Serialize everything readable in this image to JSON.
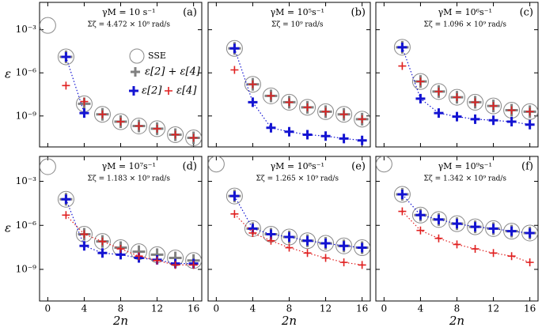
{
  "chart_data": [
    {
      "type": "scatter",
      "panel_label": "(a)",
      "annotations": [
        "γM = 10 s⁻¹",
        "Σζ = 4.472 × 10⁸ rad/s"
      ],
      "ylabel": "ε",
      "log_y": true,
      "legend": "upper right",
      "x": [
        0,
        2,
        4,
        6,
        8,
        10,
        12,
        14,
        16
      ],
      "xlim": [
        -0.9,
        16.9
      ],
      "ylim": [
        0.08,
        7e-12
      ],
      "xticks": [
        0,
        4,
        8,
        12,
        16
      ],
      "yticks": [
        {
          "value": 0.001,
          "label": "10⁻³"
        },
        {
          "value": 1e-06,
          "label": "10⁻⁶"
        },
        {
          "value": 1e-09,
          "label": "10⁻⁹"
        }
      ],
      "series": [
        {
          "name": "SSE",
          "marker": "circle",
          "color": "#888888",
          "values": [
            0.002,
            1.3e-05,
            7e-09,
            1.3e-09,
            4e-10,
            2e-10,
            1.3e-10,
            5e-11,
            3e-11
          ]
        },
        {
          "name": "ε[2] + ε[4]",
          "marker": "plus",
          "color": "#808080",
          "values": [
            null,
            1.3e-05,
            7e-09,
            1.3e-09,
            4e-10,
            2e-10,
            1.3e-10,
            5e-11,
            3e-11
          ]
        },
        {
          "name": "ε[2]",
          "marker": "plus",
          "color": "#1414d2",
          "dotted": true,
          "values": [
            null,
            1.3e-05,
            1.6e-09,
            null,
            null,
            null,
            null,
            null,
            null
          ]
        },
        {
          "name": "ε[4]",
          "marker": "plus",
          "color": "#e02020",
          "values": [
            null,
            1.3e-07,
            1e-08,
            1.3e-09,
            4e-10,
            2e-10,
            1.3e-10,
            5e-11,
            3e-11
          ]
        }
      ]
    },
    {
      "type": "scatter",
      "panel_label": "(b)",
      "annotations": [
        "γM = 10⁵s⁻¹",
        "Σζ = 10⁹ rad/s"
      ],
      "log_y": true,
      "x": [
        0,
        2,
        4,
        6,
        8,
        10,
        12,
        14,
        16
      ],
      "xlim": [
        -0.9,
        16.9
      ],
      "ylim": [
        0.08,
        7e-12
      ],
      "xticks": [
        0,
        4,
        8,
        12,
        16
      ],
      "yticks": [
        0.001,
        1e-06,
        1e-09
      ],
      "series": [
        {
          "marker": "circle",
          "color": "#888888",
          "values": [
            null,
            5e-05,
            1.6e-07,
            2.5e-08,
            9e-09,
            4e-09,
            2e-09,
            1.3e-09,
            6e-10
          ]
        },
        {
          "marker": "plus",
          "color": "#808080",
          "values": [
            null,
            5e-05,
            1.6e-07,
            2.5e-08,
            9e-09,
            4e-09,
            2e-09,
            1.3e-09,
            6e-10
          ]
        },
        {
          "marker": "plus",
          "color": "#1414d2",
          "dotted": true,
          "values": [
            null,
            5e-05,
            9e-09,
            1.5e-10,
            8e-11,
            5e-11,
            4e-11,
            2.7e-11,
            2e-11
          ]
        },
        {
          "marker": "plus",
          "color": "#e02020",
          "values": [
            null,
            1.6e-06,
            1.6e-07,
            2.5e-08,
            9e-09,
            4e-09,
            2e-09,
            1.3e-09,
            6e-10
          ]
        }
      ]
    },
    {
      "type": "scatter",
      "panel_label": "(c)",
      "annotations": [
        "γM = 10⁶s⁻¹",
        "Σζ = 1.096 × 10⁹ rad/s"
      ],
      "log_y": true,
      "x": [
        0,
        2,
        4,
        6,
        8,
        10,
        12,
        14,
        16
      ],
      "xlim": [
        -0.9,
        16.9
      ],
      "ylim": [
        0.08,
        7e-12
      ],
      "xticks": [
        0,
        4,
        8,
        12,
        16
      ],
      "yticks": [
        0.001,
        1e-06,
        1e-09
      ],
      "series": [
        {
          "marker": "circle",
          "color": "#888888",
          "values": [
            null,
            6e-05,
            2.5e-07,
            5e-08,
            2e-08,
            9e-09,
            5e-09,
            2.5e-09,
            2e-09
          ]
        },
        {
          "marker": "plus",
          "color": "#808080",
          "values": [
            null,
            6e-05,
            2.5e-07,
            5e-08,
            2e-08,
            9e-09,
            5e-09,
            2.5e-09,
            2e-09
          ]
        },
        {
          "marker": "plus",
          "color": "#1414d2",
          "dotted": true,
          "values": [
            null,
            6e-05,
            1.6e-08,
            1.6e-09,
            9e-10,
            6e-10,
            5e-10,
            4e-10,
            2.5e-10
          ]
        },
        {
          "marker": "plus",
          "color": "#e02020",
          "values": [
            null,
            3e-06,
            2.5e-07,
            5e-08,
            2e-08,
            9e-09,
            5e-09,
            2.5e-09,
            2e-09
          ]
        }
      ]
    },
    {
      "type": "scatter",
      "panel_label": "(d)",
      "annotations": [
        "γM = 10⁷s⁻¹",
        "Σζ = 1.183 × 10⁹ rad/s"
      ],
      "ylabel": "ε",
      "xlabel": "2n",
      "log_y": true,
      "x": [
        0,
        2,
        4,
        6,
        8,
        10,
        12,
        14,
        16
      ],
      "xlim": [
        -0.9,
        16.9
      ],
      "ylim": [
        0.05,
        7e-12
      ],
      "xticks": [
        0,
        4,
        8,
        12,
        16
      ],
      "yticks": [
        {
          "value": 0.001,
          "label": "10⁻³"
        },
        {
          "value": 1e-06,
          "label": "10⁻⁶"
        },
        {
          "value": 1e-09,
          "label": "10⁻⁹"
        }
      ],
      "series": [
        {
          "marker": "circle",
          "color": "#888888",
          "values": [
            0.01,
            6e-05,
            2.5e-07,
            8e-08,
            3e-08,
            1.6e-08,
            1e-08,
            6e-09,
            4e-09
          ]
        },
        {
          "marker": "plus",
          "color": "#808080",
          "values": [
            null,
            6e-05,
            2.5e-07,
            8e-08,
            3e-08,
            1.6e-08,
            1e-08,
            6e-09,
            4e-09
          ]
        },
        {
          "marker": "plus",
          "color": "#1414d2",
          "dotted": true,
          "values": [
            null,
            6e-05,
            4e-08,
            1.3e-08,
            1e-08,
            6e-09,
            4.5e-09,
            2.5e-09,
            2.5e-09
          ]
        },
        {
          "marker": "plus",
          "color": "#e02020",
          "dotted": true,
          "values": [
            null,
            5e-06,
            2.5e-07,
            8e-08,
            2.5e-08,
            8e-09,
            4e-09,
            2e-09,
            2e-09
          ]
        }
      ]
    },
    {
      "type": "scatter",
      "panel_label": "(e)",
      "annotations": [
        "γM = 10⁸s⁻¹",
        "Σζ = 1.265 × 10⁹ rad/s"
      ],
      "xlabel": "2n",
      "log_y": true,
      "x": [
        0,
        2,
        4,
        6,
        8,
        10,
        12,
        14,
        16
      ],
      "xlim": [
        -0.9,
        16.9
      ],
      "ylim": [
        0.05,
        7e-12
      ],
      "xticks": [
        0,
        4,
        8,
        12,
        16
      ],
      "yticks": [
        0.001,
        1e-06,
        1e-09
      ],
      "series": [
        {
          "marker": "circle",
          "color": "#888888",
          "values": [
            0.015,
            0.0001,
            6e-07,
            2.5e-07,
            1.6e-07,
            9e-08,
            6e-08,
            4e-08,
            3e-08
          ]
        },
        {
          "marker": "plus",
          "color": "#808080",
          "values": [
            null,
            0.0001,
            6e-07,
            2.5e-07,
            1.6e-07,
            9e-08,
            6e-08,
            4e-08,
            3e-08
          ]
        },
        {
          "marker": "plus",
          "color": "#1414d2",
          "dotted": true,
          "values": [
            null,
            0.0001,
            6e-07,
            2.5e-07,
            1.6e-07,
            9e-08,
            6e-08,
            4e-08,
            3e-08
          ]
        },
        {
          "marker": "plus",
          "color": "#e02020",
          "dotted": true,
          "values": [
            null,
            6e-06,
            3e-07,
            9e-08,
            3e-08,
            1.3e-08,
            6e-09,
            3e-09,
            2e-09
          ]
        }
      ]
    },
    {
      "type": "scatter",
      "panel_label": "(f)",
      "annotations": [
        "γM = 10⁹s⁻¹",
        "Σζ = 1.342 × 10⁹ rad/s"
      ],
      "xlabel": "2n",
      "log_y": true,
      "x": [
        0,
        2,
        4,
        6,
        8,
        10,
        12,
        14,
        16
      ],
      "xlim": [
        -0.9,
        16.9
      ],
      "ylim": [
        0.05,
        7e-12
      ],
      "xticks": [
        0,
        4,
        8,
        12,
        16
      ],
      "yticks": [
        0.001,
        1e-06,
        1e-09
      ],
      "series": [
        {
          "marker": "circle",
          "color": "#888888",
          "values": [
            0.015,
            0.00013,
            5e-06,
            2.5e-06,
            1.3e-06,
            8e-07,
            6e-07,
            4e-07,
            3e-07
          ]
        },
        {
          "marker": "plus",
          "color": "#808080",
          "values": [
            null,
            0.00013,
            5e-06,
            2.5e-06,
            1.3e-06,
            8e-07,
            6e-07,
            4e-07,
            3e-07
          ]
        },
        {
          "marker": "plus",
          "color": "#1414d2",
          "dotted": true,
          "values": [
            null,
            0.00013,
            5e-06,
            2.5e-06,
            1.3e-06,
            8e-07,
            6e-07,
            4e-07,
            3e-07
          ]
        },
        {
          "marker": "plus",
          "color": "#e02020",
          "dotted": true,
          "values": [
            null,
            9e-06,
            4.5e-07,
            1.3e-07,
            5e-08,
            2.5e-08,
            1.3e-08,
            8e-09,
            3e-09
          ]
        }
      ]
    }
  ]
}
